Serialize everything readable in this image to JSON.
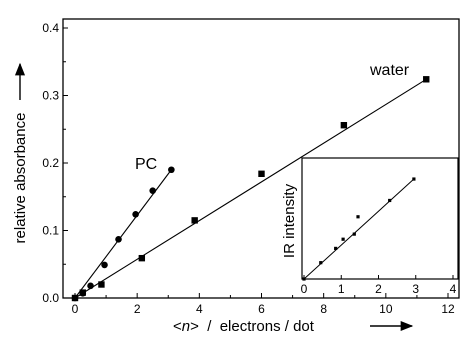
{
  "chart_data": [
    {
      "type": "scatter",
      "xlabel_prefix": "<",
      "xlabel_var": "n",
      "xlabel_suffix": ">  /  electrons / dot",
      "ylabel": "relative absorbance",
      "xlim": [
        0,
        12
      ],
      "ylim": [
        0,
        0.4
      ],
      "xticks": [
        0,
        2,
        4,
        6,
        8,
        10,
        12
      ],
      "xtick_labels": [
        "0",
        "2",
        "4",
        "6",
        "8",
        "10",
        "12"
      ],
      "yticks": [
        0.0,
        0.1,
        0.2,
        0.3,
        0.4
      ],
      "ytick_labels": [
        "0.0",
        "0.1",
        "0.2",
        "0.3",
        "0.4"
      ],
      "grid": false,
      "series": [
        {
          "name": "PC",
          "marker": "circle",
          "x": [
            0.0,
            0.25,
            0.5,
            0.95,
            1.4,
            1.95,
            2.5,
            3.1
          ],
          "y": [
            0.0,
            0.007,
            0.018,
            0.049,
            0.087,
            0.124,
            0.159,
            0.19
          ],
          "fit": {
            "x": [
              0.0,
              3.1
            ],
            "y": [
              0.0,
              0.19
            ]
          }
        },
        {
          "name": "water",
          "marker": "square",
          "x": [
            0.0,
            0.25,
            0.85,
            2.15,
            3.85,
            6.0,
            8.65,
            11.3
          ],
          "y": [
            0.0,
            0.008,
            0.02,
            0.059,
            0.115,
            0.184,
            0.256,
            0.324
          ],
          "fit": {
            "x": [
              0.0,
              11.3
            ],
            "y": [
              0.0,
              0.324
            ]
          }
        }
      ]
    },
    {
      "type": "scatter",
      "inset": true,
      "ylabel": "IR intensity",
      "xlim": [
        0,
        4
      ],
      "xticks": [
        0,
        1,
        2,
        3,
        4
      ],
      "xtick_labels": [
        "0",
        "1",
        "2",
        "3",
        "4"
      ],
      "grid": false,
      "series": [
        {
          "marker": "small-square",
          "x": [
            0.0,
            0.45,
            0.85,
            1.05,
            1.35,
            1.45,
            2.3,
            2.95
          ],
          "y": [
            0.0,
            0.16,
            0.3,
            0.39,
            0.44,
            0.61,
            0.77,
            0.98
          ],
          "fit": {
            "x": [
              0.0,
              2.95
            ],
            "y": [
              0.0,
              0.98
            ]
          }
        }
      ]
    }
  ]
}
